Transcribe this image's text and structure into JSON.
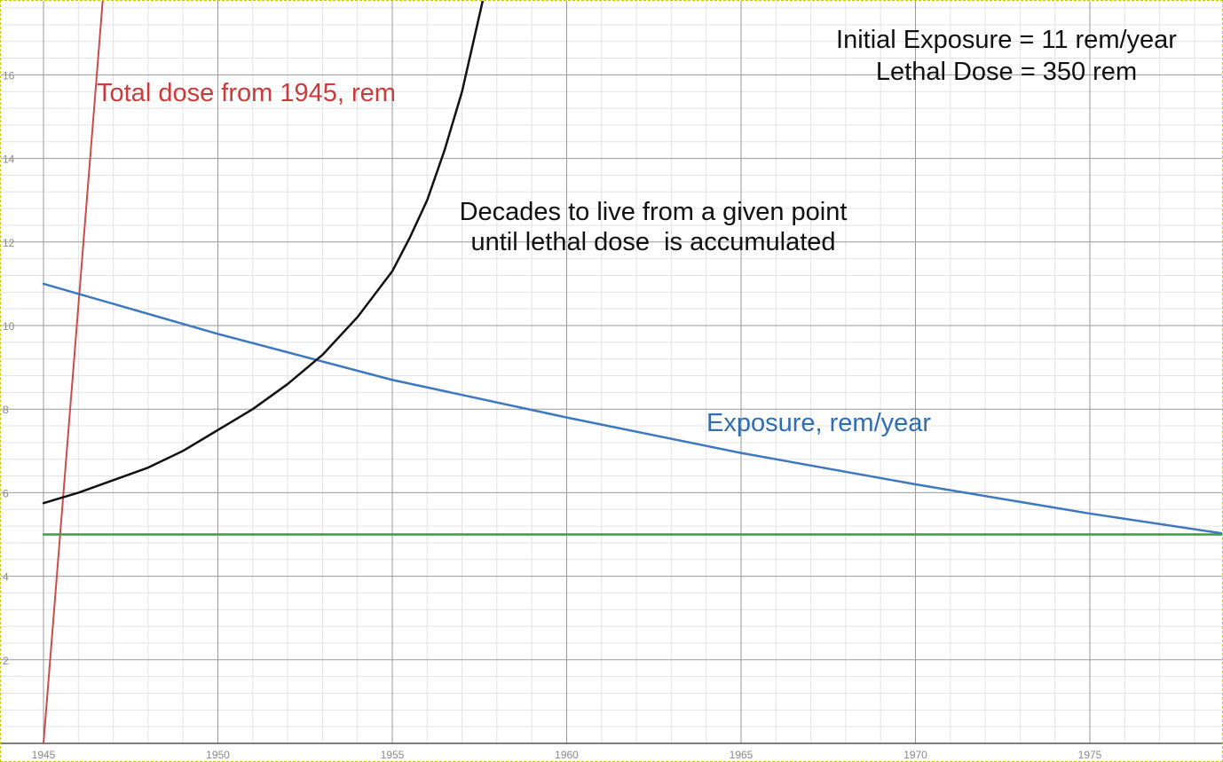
{
  "chart_data": {
    "type": "line",
    "title": "",
    "xlabel": "",
    "ylabel": "",
    "xlim": [
      1944.2,
      1979
    ],
    "ylim": [
      0,
      17.8
    ],
    "x_ticks": [
      1945,
      1950,
      1955,
      1960,
      1965,
      1970,
      1975
    ],
    "y_ticks": [
      2,
      4,
      6,
      8,
      10,
      12,
      14,
      16
    ],
    "grid": true,
    "series": [
      {
        "name": "Total dose from 1945, rem",
        "color": "#cc4b4b",
        "x": [
          1945,
          1946.7
        ],
        "y": [
          0,
          17.8
        ]
      },
      {
        "name": "Exposure, rem/year",
        "color": "#3d78c0",
        "x": [
          1945,
          1950,
          1955,
          1960,
          1965,
          1970,
          1975,
          1979
        ],
        "y": [
          11.0,
          9.8,
          8.7,
          7.8,
          6.95,
          6.2,
          5.5,
          5.0
        ]
      },
      {
        "name": "Decades to live from a given point until lethal dose is accumulated",
        "color": "#111111",
        "x": [
          1945,
          1946,
          1947,
          1948,
          1949,
          1950,
          1951,
          1952,
          1953,
          1954,
          1955,
          1955.5,
          1956,
          1956.5,
          1957,
          1957.3,
          1957.6
        ],
        "y": [
          5.75,
          6.0,
          6.3,
          6.6,
          7.0,
          7.5,
          8.0,
          8.6,
          9.3,
          10.2,
          11.3,
          12.1,
          13.0,
          14.2,
          15.6,
          16.7,
          17.8
        ]
      },
      {
        "name": "",
        "color": "#3f9b48",
        "x": [
          1945,
          1979
        ],
        "y": [
          5.0,
          5.0
        ]
      }
    ],
    "annotations": [
      "Initial Exposure = 11 rem/year",
      "Lethal Dose = 350 rem"
    ]
  }
}
